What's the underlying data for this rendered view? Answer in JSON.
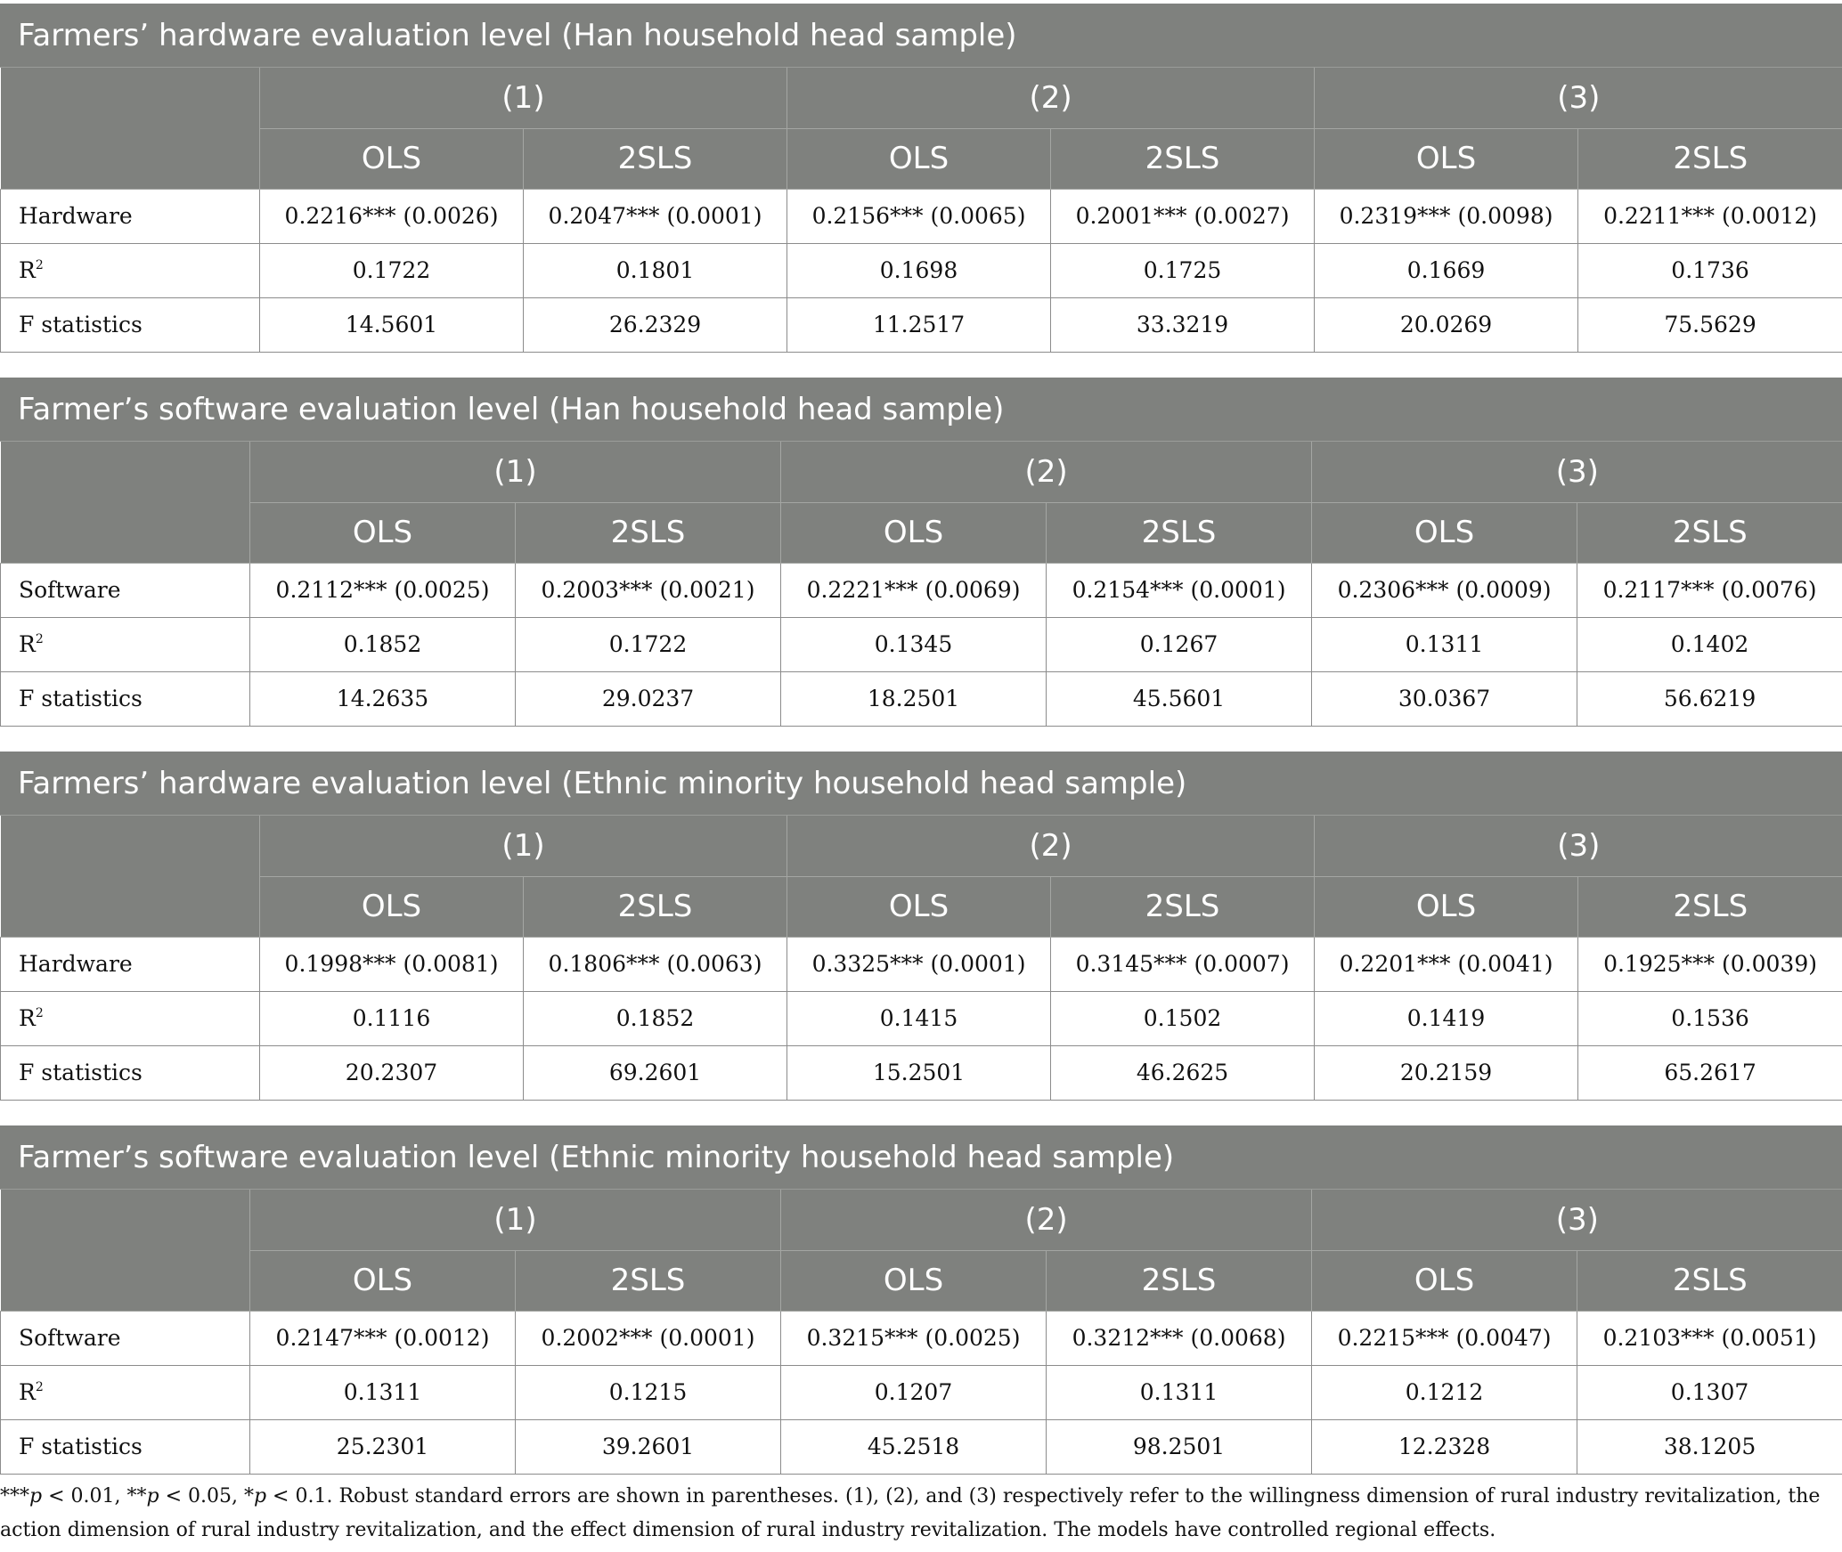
{
  "panels": [
    {
      "title": "Farmers’ hardware evaluation level (Han household head sample)",
      "models": [
        "(1)",
        "(2)",
        "(3)"
      ],
      "methods": [
        "OLS",
        "2SLS",
        "OLS",
        "2SLS",
        "OLS",
        "2SLS"
      ],
      "rows": [
        {
          "label": "Hardware",
          "cells": [
            "0.2216*** (0.0026)",
            "0.2047*** (0.0001)",
            "0.2156*** (0.0065)",
            "0.2001*** (0.0027)",
            "0.2319*** (0.0098)",
            "0.2211*** (0.0012)"
          ]
        },
        {
          "label": "R",
          "sup": "2",
          "cells": [
            "0.1722",
            "0.1801",
            "0.1698",
            "0.1725",
            "0.1669",
            "0.1736"
          ]
        },
        {
          "label": "F statistics",
          "cells": [
            "14.5601",
            "26.2329",
            "11.2517",
            "33.3219",
            "20.0269",
            "75.5629"
          ]
        }
      ]
    },
    {
      "title": "Farmer’s software evaluation level (Han household head sample)",
      "models": [
        "(1)",
        "(2)",
        "(3)"
      ],
      "methods": [
        "OLS",
        "2SLS",
        "OLS",
        "2SLS",
        "OLS",
        "2SLS"
      ],
      "rows": [
        {
          "label": "Software",
          "cells": [
            "0.2112*** (0.0025)",
            "0.2003*** (0.0021)",
            "0.2221*** (0.0069)",
            "0.2154*** (0.0001)",
            "0.2306*** (0.0009)",
            "0.2117*** (0.0076)"
          ]
        },
        {
          "label": "R",
          "sup": "2",
          "cells": [
            "0.1852",
            "0.1722",
            "0.1345",
            "0.1267",
            "0.1311",
            "0.1402"
          ]
        },
        {
          "label": "F statistics",
          "cells": [
            "14.2635",
            "29.0237",
            "18.2501",
            "45.5601",
            "30.0367",
            "56.6219"
          ]
        }
      ]
    },
    {
      "title": "Farmers’ hardware evaluation level (Ethnic minority household head sample)",
      "models": [
        "(1)",
        "(2)",
        "(3)"
      ],
      "methods": [
        "OLS",
        "2SLS",
        "OLS",
        "2SLS",
        "OLS",
        "2SLS"
      ],
      "rows": [
        {
          "label": "Hardware",
          "cells": [
            "0.1998*** (0.0081)",
            "0.1806*** (0.0063)",
            "0.3325*** (0.0001)",
            "0.3145*** (0.0007)",
            "0.2201*** (0.0041)",
            "0.1925*** (0.0039)"
          ]
        },
        {
          "label": "R",
          "sup": "2",
          "cells": [
            "0.1116",
            "0.1852",
            "0.1415",
            "0.1502",
            "0.1419",
            "0.1536"
          ]
        },
        {
          "label": "F statistics",
          "cells": [
            "20.2307",
            "69.2601",
            "15.2501",
            "46.2625",
            "20.2159",
            "65.2617"
          ]
        }
      ]
    },
    {
      "title": "Farmer’s software evaluation level (Ethnic minority household head sample)",
      "models": [
        "(1)",
        "(2)",
        "(3)"
      ],
      "methods": [
        "OLS",
        "2SLS",
        "OLS",
        "2SLS",
        "OLS",
        "2SLS"
      ],
      "rows": [
        {
          "label": "Software",
          "cells": [
            "0.2147*** (0.0012)",
            "0.2002*** (0.0001)",
            "0.3215*** (0.0025)",
            "0.3212*** (0.0068)",
            "0.2215*** (0.0047)",
            "0.2103*** (0.0051)"
          ]
        },
        {
          "label": "R",
          "sup": "2",
          "cells": [
            "0.1311",
            "0.1215",
            "0.1207",
            "0.1311",
            "0.1212",
            "0.1307"
          ]
        },
        {
          "label": "F statistics",
          "cells": [
            "25.2301",
            "39.2601",
            "45.2518",
            "98.2501",
            "12.2328",
            "38.1205"
          ]
        }
      ]
    }
  ],
  "note": {
    "p1": "***",
    "p1v": "p",
    "p1t": " < 0.01, **",
    "p2v": "p",
    "p2t": " < 0.05, *",
    "p3v": "p",
    "p3t": " < 0.1. Robust standard errors are shown in parentheses. (1), (2), and (3) respectively refer to the willingness dimension of rural industry revitalization, the action dimension of rural industry revitalization, and the effect dimension of rural industry revitalization. The models have controlled regional effects."
  }
}
